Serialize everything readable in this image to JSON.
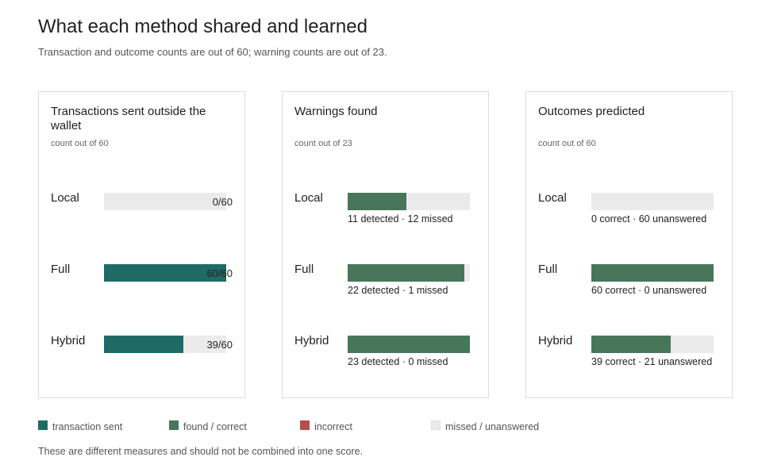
{
  "title": "What each method shared and learned",
  "subtitle": "Transaction and outcome counts are out of 60; warning counts are out of 23.",
  "colors": {
    "transaction_sent": "#1e6b66",
    "found_correct": "#48765a",
    "incorrect": "#b44d4f",
    "missed": "#ebebeb"
  },
  "chart_data": [
    {
      "type": "bar",
      "title": "Transactions sent outside the wallet",
      "note": "count out of 60",
      "max": 60,
      "categories": [
        "Local",
        "Full",
        "Hybrid"
      ],
      "series": [
        {
          "name": "transaction sent",
          "values": [
            0,
            60,
            39
          ]
        }
      ],
      "labels": [
        "0/60",
        "60/60",
        "39/60"
      ]
    },
    {
      "type": "bar",
      "title": "Warnings found",
      "note": "count out of 23",
      "max": 23,
      "categories": [
        "Local",
        "Full",
        "Hybrid"
      ],
      "series": [
        {
          "name": "found / correct",
          "values": [
            11,
            22,
            23
          ]
        },
        {
          "name": "missed / unanswered",
          "values": [
            12,
            1,
            0
          ]
        }
      ],
      "labels": [
        "11 detected · 12 missed",
        "22 detected · 1 missed",
        "23 detected · 0 missed"
      ]
    },
    {
      "type": "bar",
      "title": "Outcomes predicted",
      "note": "count out of 60",
      "max": 60,
      "categories": [
        "Local",
        "Full",
        "Hybrid"
      ],
      "series": [
        {
          "name": "found / correct",
          "values": [
            0,
            60,
            39
          ]
        },
        {
          "name": "missed / unanswered",
          "values": [
            60,
            0,
            21
          ]
        }
      ],
      "labels": [
        "0 correct · 60 unanswered",
        "60 correct · 0 unanswered",
        "39 correct · 21 unanswered"
      ]
    }
  ],
  "legend": [
    {
      "label": "transaction sent",
      "color": "#1e6b66"
    },
    {
      "label": "found / correct",
      "color": "#48765a"
    },
    {
      "label": "incorrect",
      "color": "#b44d4f"
    },
    {
      "label": "missed / unanswered",
      "color": "#ebebeb"
    }
  ],
  "footnote": "These are different measures and should not be combined into one score."
}
